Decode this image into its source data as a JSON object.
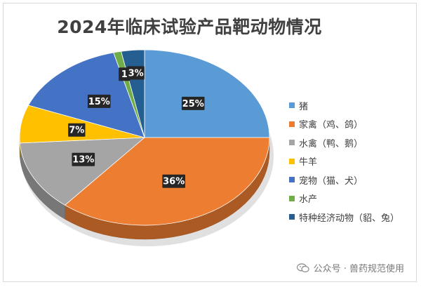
{
  "chart_data": {
    "type": "pie",
    "title": "2024年临床试验产品靶动物情况",
    "slices": [
      {
        "name": "猪",
        "value": 25,
        "label": "25%",
        "color": "#5b9bd5"
      },
      {
        "name": "家禽（鸡、鸽）",
        "value": 36,
        "label": "36%",
        "color": "#ed7d31"
      },
      {
        "name": "水禽（鸭、鹅）",
        "value": 13,
        "label": "13%",
        "color": "#a5a5a5"
      },
      {
        "name": "牛羊",
        "value": 7,
        "label": "7%",
        "color": "#ffc000"
      },
      {
        "name": "宠物（猫、犬）",
        "value": 15,
        "label": "15%",
        "color": "#4472c4"
      },
      {
        "name": "水产",
        "value": 1,
        "label": "1",
        "color": "#70ad47"
      },
      {
        "name": "特种经济动物（貂、兔）",
        "value": 3,
        "label": "3%",
        "color": "#255e91"
      }
    ],
    "legend_position": "right",
    "style": "3d"
  },
  "watermark": {
    "text": "公众号 · 兽药规范使用",
    "icon": "wechat-icon"
  }
}
